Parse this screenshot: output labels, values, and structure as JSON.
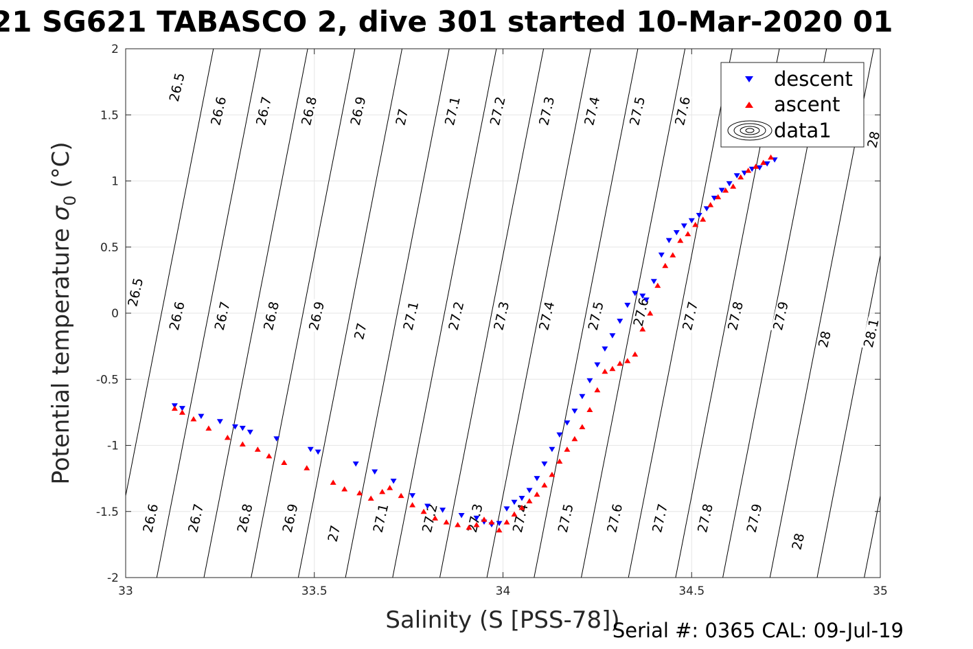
{
  "title": "21 SG621 TABASCO 2, dive 301 started 10-Mar-2020 01",
  "footer": "Serial #: 0365  CAL: 09-Jul-19",
  "legend": {
    "entries": [
      "descent",
      "ascent",
      "data1"
    ]
  },
  "colors": {
    "descent": "#0000ff",
    "ascent": "#ff0000",
    "contour": "#000000",
    "grid": "#e6e6e6"
  },
  "chart_data": {
    "type": "scatter",
    "xlabel": "Salinity (S [PSS-78])",
    "ylabel_prefix": "Potential temperature ",
    "ylabel_symbol": "σ",
    "ylabel_sub": "0",
    "ylabel_suffix": " (°C)",
    "xlim": [
      33,
      35
    ],
    "ylim": [
      -2,
      2
    ],
    "xticks": [
      33,
      33.5,
      34,
      34.5,
      35
    ],
    "xtick_labels": [
      "33",
      "33.5",
      "34",
      "34.5",
      "35"
    ],
    "yticks": [
      -2,
      -1.5,
      -1,
      -0.5,
      0,
      0.5,
      1,
      1.5,
      2
    ],
    "ytick_labels": [
      "-2",
      "-1.5",
      "-1",
      "-0.5",
      "0",
      "0.5",
      "1",
      "1.5",
      "2"
    ],
    "grid": true,
    "legend_position": "top-right",
    "density_contours": {
      "levels": [
        26.5,
        26.6,
        26.7,
        26.8,
        26.9,
        27,
        27.1,
        27.2,
        27.3,
        27.4,
        27.5,
        27.6,
        27.7,
        27.8,
        27.9,
        28,
        28.1
      ],
      "labels": [
        {
          "text": "26.5",
          "at": [
            33.13,
            1.6
          ]
        },
        {
          "text": "26.6",
          "at": [
            33.24,
            1.42
          ]
        },
        {
          "text": "26.7",
          "at": [
            33.36,
            1.42
          ]
        },
        {
          "text": "26.8",
          "at": [
            33.48,
            1.42
          ]
        },
        {
          "text": "26.9",
          "at": [
            33.61,
            1.42
          ]
        },
        {
          "text": "27",
          "at": [
            33.73,
            1.42
          ]
        },
        {
          "text": "27.1",
          "at": [
            33.86,
            1.42
          ]
        },
        {
          "text": "27.2",
          "at": [
            33.98,
            1.42
          ]
        },
        {
          "text": "27.3",
          "at": [
            34.11,
            1.42
          ]
        },
        {
          "text": "27.4",
          "at": [
            34.23,
            1.42
          ]
        },
        {
          "text": "27.5",
          "at": [
            34.35,
            1.42
          ]
        },
        {
          "text": "27.6",
          "at": [
            34.47,
            1.42
          ]
        },
        {
          "text": "28",
          "at": [
            34.98,
            1.25
          ]
        },
        {
          "text": "26.5",
          "at": [
            33.02,
            0.05
          ]
        },
        {
          "text": "26.6",
          "at": [
            33.13,
            -0.13
          ]
        },
        {
          "text": "26.7",
          "at": [
            33.25,
            -0.13
          ]
        },
        {
          "text": "26.8",
          "at": [
            33.38,
            -0.13
          ]
        },
        {
          "text": "26.9",
          "at": [
            33.5,
            -0.13
          ]
        },
        {
          "text": "27",
          "at": [
            33.62,
            -0.2
          ]
        },
        {
          "text": "27.1",
          "at": [
            33.75,
            -0.13
          ]
        },
        {
          "text": "27.2",
          "at": [
            33.87,
            -0.13
          ]
        },
        {
          "text": "27.3",
          "at": [
            33.99,
            -0.13
          ]
        },
        {
          "text": "27.4",
          "at": [
            34.11,
            -0.13
          ]
        },
        {
          "text": "27.5",
          "at": [
            34.24,
            -0.13
          ]
        },
        {
          "text": "27.6",
          "at": [
            34.36,
            -0.1
          ]
        },
        {
          "text": "27.7",
          "at": [
            34.49,
            -0.13
          ]
        },
        {
          "text": "27.8",
          "at": [
            34.61,
            -0.13
          ]
        },
        {
          "text": "27.9",
          "at": [
            34.73,
            -0.13
          ]
        },
        {
          "text": "28",
          "at": [
            34.85,
            -0.26
          ]
        },
        {
          "text": "28.1",
          "at": [
            34.97,
            -0.26
          ]
        },
        {
          "text": "26.6",
          "at": [
            33.06,
            -1.66
          ]
        },
        {
          "text": "26.7",
          "at": [
            33.18,
            -1.66
          ]
        },
        {
          "text": "26.8",
          "at": [
            33.31,
            -1.66
          ]
        },
        {
          "text": "26.9",
          "at": [
            33.43,
            -1.66
          ]
        },
        {
          "text": "27",
          "at": [
            33.55,
            -1.73
          ]
        },
        {
          "text": "27.1",
          "at": [
            33.67,
            -1.66
          ]
        },
        {
          "text": "27.2",
          "at": [
            33.8,
            -1.66
          ]
        },
        {
          "text": "27.3",
          "at": [
            33.92,
            -1.66
          ]
        },
        {
          "text": "27.4",
          "at": [
            34.04,
            -1.66
          ]
        },
        {
          "text": "27.5",
          "at": [
            34.16,
            -1.66
          ]
        },
        {
          "text": "27.6",
          "at": [
            34.29,
            -1.66
          ]
        },
        {
          "text": "27.7",
          "at": [
            34.41,
            -1.66
          ]
        },
        {
          "text": "27.8",
          "at": [
            34.53,
            -1.66
          ]
        },
        {
          "text": "27.9",
          "at": [
            34.66,
            -1.66
          ]
        },
        {
          "text": "28",
          "at": [
            34.78,
            -1.79
          ]
        }
      ]
    },
    "series": [
      {
        "name": "descent",
        "marker": "triangle-down",
        "color": "#0000ff",
        "x": [
          33.13,
          33.15,
          33.2,
          33.25,
          33.29,
          33.31,
          33.33,
          33.4,
          33.49,
          33.51,
          33.61,
          33.66,
          33.71,
          33.76,
          33.8,
          33.84,
          33.89,
          33.93,
          33.95,
          33.97,
          33.99,
          34.01,
          34.03,
          34.05,
          34.07,
          34.09,
          34.11,
          34.13,
          34.15,
          34.17,
          34.19,
          34.21,
          34.23,
          34.25,
          34.27,
          34.29,
          34.31,
          34.33,
          34.35,
          34.37,
          34.38,
          34.4,
          34.42,
          34.44,
          34.46,
          34.48,
          34.5,
          34.52,
          34.54,
          34.56,
          34.58,
          34.6,
          34.62,
          34.64,
          34.66,
          34.68,
          34.7,
          34.72
        ],
        "y": [
          -0.7,
          -0.72,
          -0.78,
          -0.82,
          -0.86,
          -0.87,
          -0.9,
          -0.95,
          -1.03,
          -1.05,
          -1.14,
          -1.2,
          -1.27,
          -1.38,
          -1.46,
          -1.49,
          -1.53,
          -1.55,
          -1.58,
          -1.6,
          -1.59,
          -1.48,
          -1.43,
          -1.4,
          -1.34,
          -1.25,
          -1.14,
          -1.03,
          -0.92,
          -0.83,
          -0.74,
          -0.63,
          -0.51,
          -0.39,
          -0.27,
          -0.17,
          -0.06,
          0.06,
          0.15,
          0.13,
          0.1,
          0.24,
          0.44,
          0.55,
          0.61,
          0.66,
          0.7,
          0.74,
          0.79,
          0.87,
          0.93,
          0.98,
          1.04,
          1.06,
          1.09,
          1.1,
          1.13,
          1.16
        ]
      },
      {
        "name": "ascent",
        "marker": "triangle-up",
        "color": "#ff0000",
        "x": [
          33.13,
          33.15,
          33.18,
          33.22,
          33.27,
          33.31,
          33.35,
          33.38,
          33.42,
          33.48,
          33.55,
          33.58,
          33.62,
          33.65,
          33.68,
          33.7,
          33.73,
          33.76,
          33.79,
          33.82,
          33.85,
          33.88,
          33.91,
          33.93,
          33.95,
          33.97,
          33.99,
          34.01,
          34.03,
          34.05,
          34.07,
          34.09,
          34.11,
          34.13,
          34.15,
          34.17,
          34.19,
          34.21,
          34.23,
          34.25,
          34.27,
          34.29,
          34.31,
          34.33,
          34.35,
          34.37,
          34.39,
          34.41,
          34.43,
          34.45,
          34.47,
          34.49,
          34.51,
          34.53,
          34.55,
          34.57,
          34.59,
          34.61,
          34.63,
          34.65,
          34.67,
          34.69,
          34.71
        ],
        "y": [
          -0.72,
          -0.75,
          -0.8,
          -0.87,
          -0.94,
          -0.99,
          -1.03,
          -1.08,
          -1.13,
          -1.17,
          -1.28,
          -1.33,
          -1.36,
          -1.4,
          -1.35,
          -1.32,
          -1.38,
          -1.45,
          -1.5,
          -1.55,
          -1.58,
          -1.6,
          -1.62,
          -1.6,
          -1.56,
          -1.58,
          -1.64,
          -1.58,
          -1.52,
          -1.47,
          -1.42,
          -1.37,
          -1.3,
          -1.22,
          -1.12,
          -1.03,
          -0.95,
          -0.86,
          -0.73,
          -0.58,
          -0.44,
          -0.42,
          -0.38,
          -0.36,
          -0.31,
          -0.12,
          0.0,
          0.21,
          0.36,
          0.44,
          0.55,
          0.6,
          0.67,
          0.71,
          0.82,
          0.88,
          0.93,
          0.96,
          1.03,
          1.08,
          1.11,
          1.14,
          1.18
        ]
      }
    ]
  }
}
